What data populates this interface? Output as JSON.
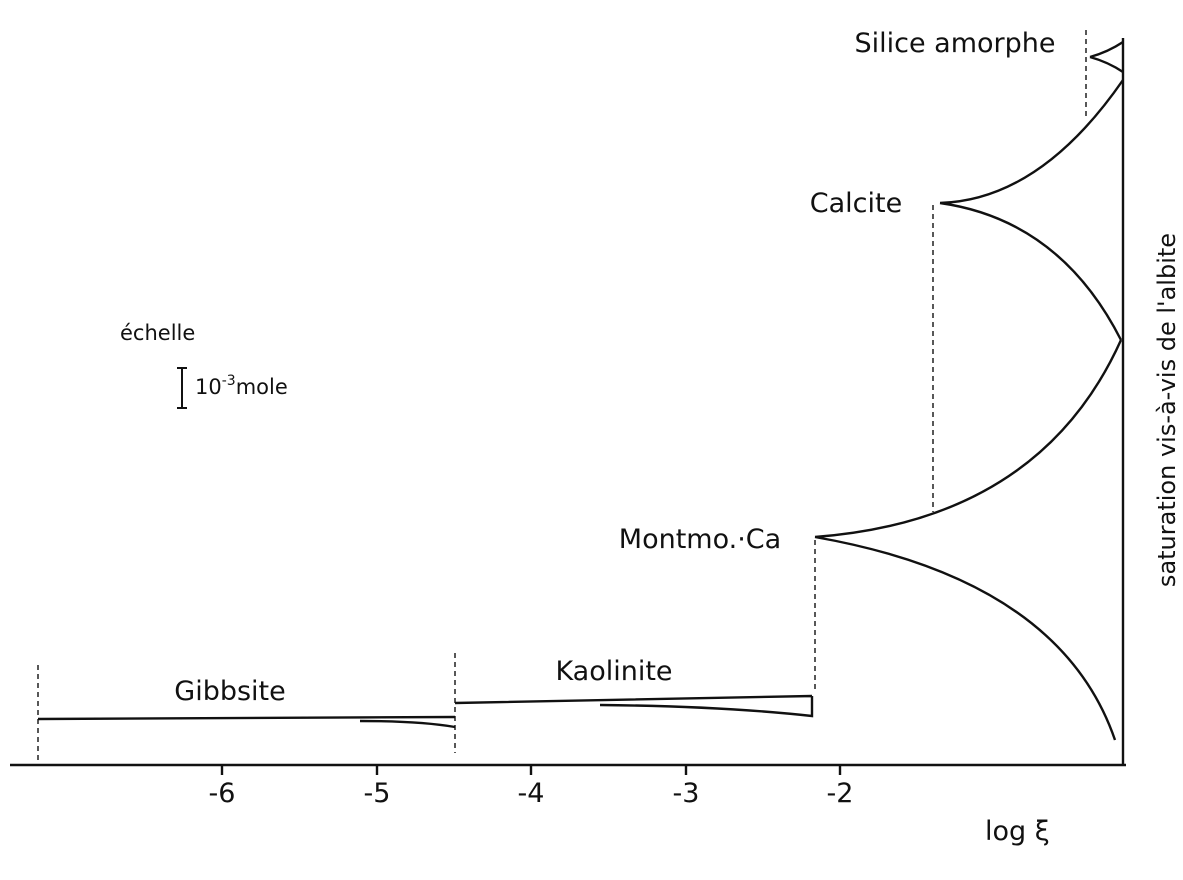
{
  "axis": {
    "ticks": [
      "-6",
      "-5",
      "-4",
      "-3",
      "-2"
    ],
    "label": "log ξ"
  },
  "phases": [
    "Gibbsite",
    "Kaolinite",
    "Montmo.·Ca",
    "Calcite",
    "Silice amorphe"
  ],
  "side_label": "saturation vis-à-vis de l'albite",
  "scale": {
    "title": "échelle",
    "base": "10",
    "exponent": "-3",
    "unit": "mole"
  }
}
